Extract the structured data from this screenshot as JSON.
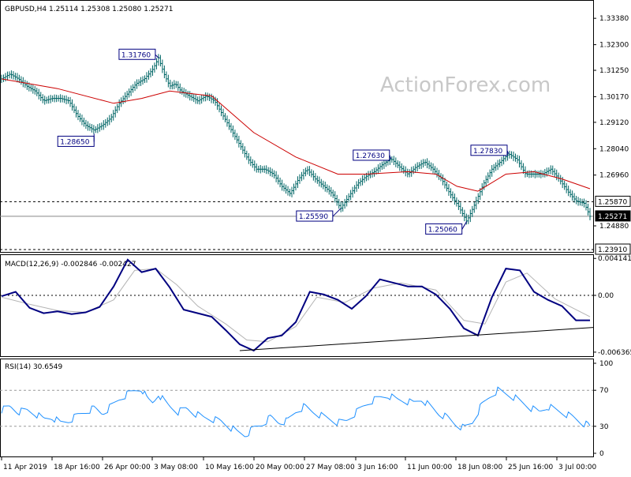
{
  "chart_data": {
    "type": "candlestick",
    "watermark": "ActionForex.com",
    "price_panel": {
      "title": "GBPUSD,H4  1.25114 1.25308 1.25080 1.25271",
      "ylim": [
        1.2391,
        1.34
      ],
      "ticks": [
        "1.33380",
        "1.32300",
        "1.31250",
        "1.30170",
        "1.29120",
        "1.28040",
        "1.26960",
        "1.25870",
        "1.25271",
        "1.24880",
        "1.23910"
      ],
      "levels": {
        "resistance": 1.2587,
        "current": 1.25271,
        "support": 1.2391
      },
      "annotations": [
        {
          "label": "1.31760",
          "value": 1.3176
        },
        {
          "label": "1.28650",
          "value": 1.2865
        },
        {
          "label": "1.27630",
          "value": 1.2763
        },
        {
          "label": "1.25590",
          "value": 1.2559
        },
        {
          "label": "1.27830",
          "value": 1.2783
        },
        {
          "label": "1.25060",
          "value": 1.2506
        }
      ],
      "close_path": [
        [
          0,
          1.309
        ],
        [
          6,
          1.311
        ],
        [
          12,
          1.309
        ],
        [
          18,
          1.306
        ],
        [
          24,
          1.304
        ],
        [
          30,
          1.3
        ],
        [
          36,
          1.301
        ],
        [
          42,
          1.301
        ],
        [
          48,
          1.3
        ],
        [
          54,
          1.294
        ],
        [
          60,
          1.29
        ],
        [
          66,
          1.288
        ],
        [
          72,
          1.29
        ],
        [
          78,
          1.293
        ],
        [
          84,
          1.299
        ],
        [
          90,
          1.303
        ],
        [
          96,
          1.307
        ],
        [
          102,
          1.309
        ],
        [
          108,
          1.313
        ],
        [
          112,
          1.3176
        ],
        [
          116,
          1.311
        ],
        [
          120,
          1.306
        ],
        [
          124,
          1.307
        ],
        [
          128,
          1.304
        ],
        [
          134,
          1.302
        ],
        [
          140,
          1.3
        ],
        [
          146,
          1.302
        ],
        [
          152,
          1.3
        ],
        [
          158,
          1.294
        ],
        [
          164,
          1.288
        ],
        [
          170,
          1.282
        ],
        [
          176,
          1.276
        ],
        [
          182,
          1.272
        ],
        [
          188,
          1.272
        ],
        [
          194,
          1.27
        ],
        [
          200,
          1.265
        ],
        [
          206,
          1.262
        ],
        [
          212,
          1.268
        ],
        [
          218,
          1.272
        ],
        [
          224,
          1.268
        ],
        [
          230,
          1.265
        ],
        [
          236,
          1.262
        ],
        [
          242,
          1.2559
        ],
        [
          248,
          1.261
        ],
        [
          254,
          1.266
        ],
        [
          260,
          1.269
        ],
        [
          266,
          1.271
        ],
        [
          272,
          1.274
        ],
        [
          278,
          1.2763
        ],
        [
          284,
          1.273
        ],
        [
          290,
          1.27
        ],
        [
          296,
          1.273
        ],
        [
          302,
          1.275
        ],
        [
          308,
          1.272
        ],
        [
          314,
          1.268
        ],
        [
          320,
          1.262
        ],
        [
          326,
          1.257
        ],
        [
          332,
          1.2506
        ],
        [
          338,
          1.258
        ],
        [
          344,
          1.266
        ],
        [
          350,
          1.272
        ],
        [
          356,
          1.275
        ],
        [
          362,
          1.2783
        ],
        [
          368,
          1.276
        ],
        [
          374,
          1.27
        ],
        [
          380,
          1.27
        ],
        [
          386,
          1.27
        ],
        [
          392,
          1.272
        ],
        [
          398,
          1.268
        ],
        [
          404,
          1.263
        ],
        [
          410,
          1.259
        ],
        [
          416,
          1.258
        ],
        [
          420,
          1.2527
        ]
      ],
      "moving_average": [
        [
          0,
          1.309
        ],
        [
          40,
          1.305
        ],
        [
          80,
          1.299
        ],
        [
          100,
          1.301
        ],
        [
          120,
          1.304
        ],
        [
          150,
          1.302
        ],
        [
          180,
          1.287
        ],
        [
          210,
          1.277
        ],
        [
          240,
          1.27
        ],
        [
          260,
          1.27
        ],
        [
          290,
          1.271
        ],
        [
          310,
          1.27
        ],
        [
          325,
          1.265
        ],
        [
          340,
          1.263
        ],
        [
          360,
          1.27
        ],
        [
          380,
          1.271
        ],
        [
          400,
          1.268
        ],
        [
          420,
          1.264
        ]
      ]
    },
    "macd_panel": {
      "title": "MACD(12,26,9) -0.002846 -0.002427",
      "ylim": [
        -0.00655,
        0.00425
      ],
      "ticks": [
        "0.004141",
        "0.00",
        "-0.006365"
      ],
      "macd": [
        [
          0,
          -0.0001
        ],
        [
          10,
          0.0004
        ],
        [
          20,
          -0.0014
        ],
        [
          30,
          -0.002
        ],
        [
          40,
          -0.0018
        ],
        [
          50,
          -0.0021
        ],
        [
          60,
          -0.0019
        ],
        [
          70,
          -0.0013
        ],
        [
          80,
          0.001
        ],
        [
          90,
          0.004
        ],
        [
          100,
          0.0026
        ],
        [
          110,
          0.003
        ],
        [
          120,
          0.0009
        ],
        [
          130,
          -0.0016
        ],
        [
          140,
          -0.002
        ],
        [
          150,
          -0.0024
        ],
        [
          160,
          -0.0039
        ],
        [
          170,
          -0.0055
        ],
        [
          180,
          -0.0062
        ],
        [
          190,
          -0.0048
        ],
        [
          200,
          -0.0045
        ],
        [
          210,
          -0.003
        ],
        [
          220,
          0.0004
        ],
        [
          230,
          0.0001
        ],
        [
          240,
          -0.0005
        ],
        [
          250,
          -0.0015
        ],
        [
          260,
          -0.0001
        ],
        [
          270,
          0.0018
        ],
        [
          280,
          0.0014
        ],
        [
          290,
          0.001
        ],
        [
          300,
          0.001
        ],
        [
          310,
          0.0001
        ],
        [
          320,
          -0.0015
        ],
        [
          330,
          -0.0037
        ],
        [
          340,
          -0.0045
        ],
        [
          350,
          -0.0002
        ],
        [
          360,
          0.003
        ],
        [
          370,
          0.0028
        ],
        [
          380,
          0.0004
        ],
        [
          390,
          -0.0005
        ],
        [
          400,
          -0.0012
        ],
        [
          410,
          -0.0028
        ],
        [
          420,
          -0.0028
        ]
      ],
      "signal": [
        [
          0,
          -0.0002
        ],
        [
          20,
          -0.001
        ],
        [
          40,
          -0.0017
        ],
        [
          60,
          -0.0019
        ],
        [
          80,
          -0.0005
        ],
        [
          95,
          0.0028
        ],
        [
          110,
          0.003
        ],
        [
          125,
          0.0012
        ],
        [
          140,
          -0.0012
        ],
        [
          160,
          -0.0032
        ],
        [
          175,
          -0.005
        ],
        [
          190,
          -0.0052
        ],
        [
          210,
          -0.0035
        ],
        [
          225,
          -0.0002
        ],
        [
          245,
          -0.0008
        ],
        [
          265,
          0.0008
        ],
        [
          285,
          0.0014
        ],
        [
          310,
          0.0006
        ],
        [
          330,
          -0.0028
        ],
        [
          345,
          -0.0032
        ],
        [
          360,
          0.0015
        ],
        [
          375,
          0.0025
        ],
        [
          395,
          -0.0004
        ],
        [
          420,
          -0.0024
        ]
      ],
      "trendline": [
        [
          170,
          -0.0062
        ],
        [
          420,
          -0.0036
        ]
      ]
    },
    "rsi_panel": {
      "title": "RSI(14) 30.6549",
      "ylim": [
        0,
        100
      ],
      "ticks": [
        "100",
        "70",
        "30",
        "0"
      ],
      "levels": [
        70,
        30
      ],
      "rsi": [
        [
          0,
          48
        ],
        [
          6,
          52
        ],
        [
          12,
          46
        ],
        [
          18,
          48
        ],
        [
          24,
          44
        ],
        [
          30,
          38
        ],
        [
          36,
          40
        ],
        [
          42,
          34
        ],
        [
          48,
          36
        ],
        [
          54,
          42
        ],
        [
          60,
          46
        ],
        [
          66,
          50
        ],
        [
          72,
          44
        ],
        [
          78,
          52
        ],
        [
          84,
          60
        ],
        [
          90,
          66
        ],
        [
          96,
          70
        ],
        [
          100,
          72
        ],
        [
          104,
          60
        ],
        [
          108,
          56
        ],
        [
          112,
          66
        ],
        [
          116,
          58
        ],
        [
          120,
          52
        ],
        [
          126,
          46
        ],
        [
          132,
          50
        ],
        [
          138,
          44
        ],
        [
          144,
          40
        ],
        [
          150,
          38
        ],
        [
          156,
          36
        ],
        [
          162,
          30
        ],
        [
          168,
          24
        ],
        [
          174,
          20
        ],
        [
          180,
          28
        ],
        [
          186,
          32
        ],
        [
          192,
          40
        ],
        [
          198,
          34
        ],
        [
          204,
          36
        ],
        [
          210,
          46
        ],
        [
          216,
          52
        ],
        [
          222,
          46
        ],
        [
          228,
          42
        ],
        [
          234,
          38
        ],
        [
          240,
          34
        ],
        [
          246,
          36
        ],
        [
          252,
          44
        ],
        [
          258,
          52
        ],
        [
          264,
          58
        ],
        [
          270,
          62
        ],
        [
          276,
          64
        ],
        [
          282,
          60
        ],
        [
          288,
          58
        ],
        [
          294,
          56
        ],
        [
          300,
          60
        ],
        [
          306,
          52
        ],
        [
          312,
          44
        ],
        [
          318,
          40
        ],
        [
          324,
          32
        ],
        [
          330,
          28
        ],
        [
          336,
          34
        ],
        [
          342,
          52
        ],
        [
          348,
          62
        ],
        [
          354,
          70
        ],
        [
          360,
          66
        ],
        [
          366,
          62
        ],
        [
          372,
          56
        ],
        [
          378,
          50
        ],
        [
          384,
          46
        ],
        [
          390,
          52
        ],
        [
          396,
          48
        ],
        [
          402,
          44
        ],
        [
          408,
          40
        ],
        [
          414,
          34
        ],
        [
          420,
          30.6549
        ]
      ]
    },
    "x_labels": [
      "11 Apr 2019",
      "18 Apr 16:00",
      "26 Apr 00:00",
      "3 May 08:00",
      "10 May 16:00",
      "20 May 00:00",
      "27 May 08:00",
      "3 Jun 16:00",
      "11 Jun 00:00",
      "18 Jun 08:00",
      "25 Jun 16:00",
      "3 Jul 00:00"
    ],
    "colors": {
      "price": "#006666",
      "ma": "#cc0000",
      "macd": "#000080",
      "signal": "#b4b4b4",
      "rsi": "#1e90ff",
      "grid": "#000000"
    }
  }
}
